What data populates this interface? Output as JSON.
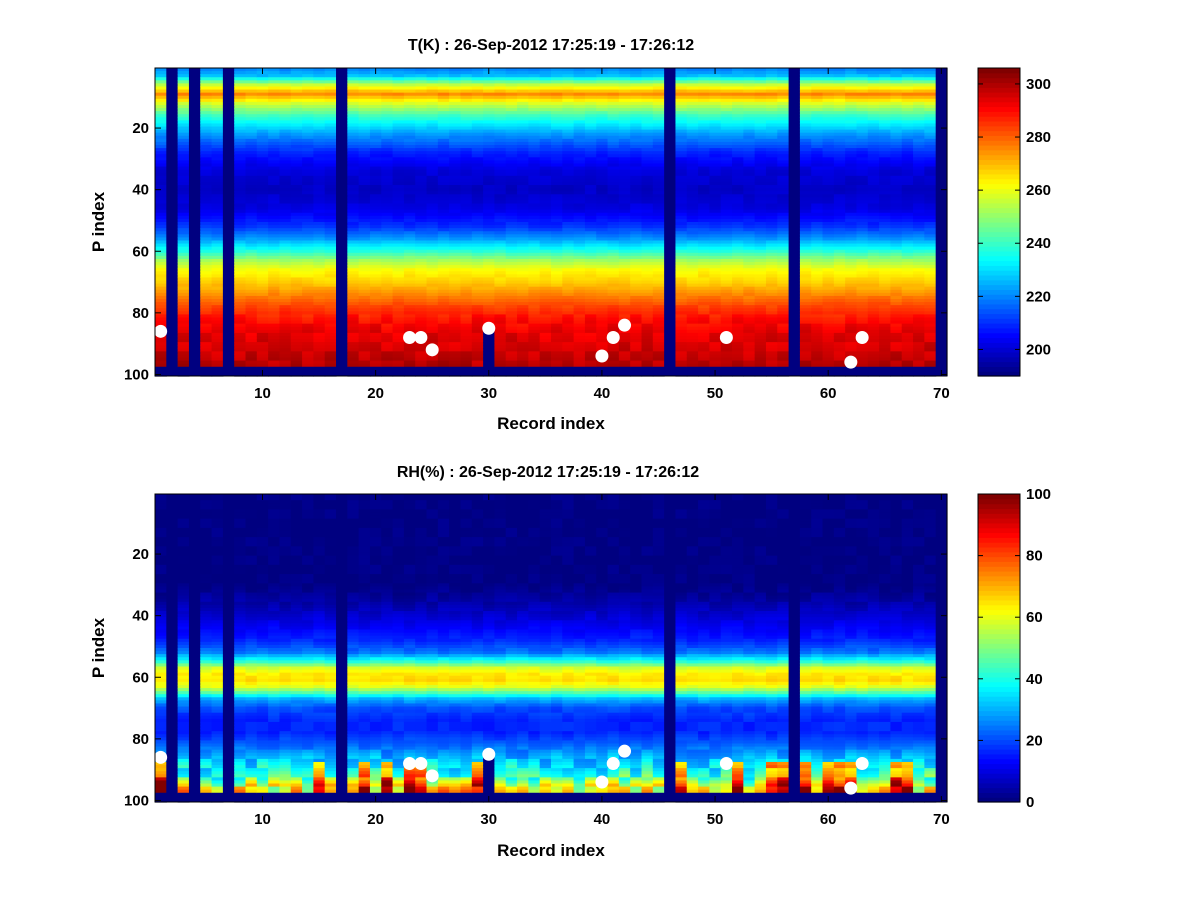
{
  "chart_data": [
    {
      "type": "heatmap",
      "title": "T(K) : 26-Sep-2012 17:25:19 - 17:26:12",
      "xlabel": "Record index",
      "ylabel": "P index",
      "xlim": [
        0.5,
        70.5
      ],
      "ylim": [
        0.5,
        100.5
      ],
      "y_reversed": true,
      "xticks": [
        10,
        20,
        30,
        40,
        50,
        60,
        70
      ],
      "yticks": [
        20,
        40,
        60,
        80,
        100
      ],
      "colormap": "jet",
      "clim": [
        190,
        306
      ],
      "colorbar_ticks": [
        200,
        220,
        240,
        260,
        280,
        300
      ],
      "missing_records": [
        2,
        4,
        7,
        17,
        46,
        57,
        70
      ],
      "missing_from_p": [
        {
          "record": 30,
          "p": 86
        }
      ],
      "bottom_missing_p": 98,
      "profile": [
        [
          1,
          220
        ],
        [
          3,
          226
        ],
        [
          6,
          256
        ],
        [
          9,
          276
        ],
        [
          12,
          258
        ],
        [
          16,
          240
        ],
        [
          22,
          222
        ],
        [
          28,
          208
        ],
        [
          34,
          200
        ],
        [
          40,
          198
        ],
        [
          46,
          201
        ],
        [
          52,
          210
        ],
        [
          56,
          222
        ],
        [
          60,
          238
        ],
        [
          63,
          252
        ],
        [
          66,
          262
        ],
        [
          70,
          268
        ],
        [
          74,
          276
        ],
        [
          78,
          284
        ],
        [
          82,
          290
        ],
        [
          86,
          294
        ],
        [
          90,
          296
        ],
        [
          94,
          298
        ],
        [
          97,
          300
        ]
      ],
      "markers": [
        {
          "x": 1,
          "y": 86
        },
        {
          "x": 23,
          "y": 88
        },
        {
          "x": 24,
          "y": 88
        },
        {
          "x": 25,
          "y": 92
        },
        {
          "x": 30,
          "y": 85
        },
        {
          "x": 40,
          "y": 94
        },
        {
          "x": 41,
          "y": 88
        },
        {
          "x": 42,
          "y": 84
        },
        {
          "x": 51,
          "y": 88
        },
        {
          "x": 62,
          "y": 96
        },
        {
          "x": 63,
          "y": 88
        }
      ],
      "marker_color": "#ffffff"
    },
    {
      "type": "heatmap",
      "title": "RH(%) : 26-Sep-2012 17:25:19 - 17:26:12",
      "xlabel": "Record index",
      "ylabel": "P index",
      "xlim": [
        0.5,
        70.5
      ],
      "ylim": [
        0.5,
        100.5
      ],
      "y_reversed": true,
      "xticks": [
        10,
        20,
        30,
        40,
        50,
        60,
        70
      ],
      "yticks": [
        20,
        40,
        60,
        80,
        100
      ],
      "colormap": "jet",
      "clim": [
        0,
        100
      ],
      "colorbar_ticks": [
        0,
        20,
        40,
        60,
        80,
        100
      ],
      "missing_records": [
        2,
        4,
        7,
        17,
        46,
        57,
        70
      ],
      "missing_from_p": [
        {
          "record": 30,
          "p": 86
        }
      ],
      "bottom_missing_p": 98,
      "profile": [
        [
          1,
          0
        ],
        [
          30,
          0
        ],
        [
          36,
          4
        ],
        [
          42,
          10
        ],
        [
          48,
          16
        ],
        [
          52,
          24
        ],
        [
          55,
          42
        ],
        [
          57,
          58
        ],
        [
          59,
          64
        ],
        [
          61,
          66
        ],
        [
          63,
          60
        ],
        [
          65,
          46
        ],
        [
          67,
          30
        ],
        [
          70,
          20
        ],
        [
          74,
          16
        ],
        [
          78,
          16
        ],
        [
          82,
          22
        ],
        [
          86,
          30
        ],
        [
          90,
          38
        ],
        [
          93,
          46
        ],
        [
          95,
          58
        ],
        [
          97,
          64
        ]
      ],
      "markers": [
        {
          "x": 1,
          "y": 86
        },
        {
          "x": 23,
          "y": 88
        },
        {
          "x": 24,
          "y": 88
        },
        {
          "x": 25,
          "y": 92
        },
        {
          "x": 30,
          "y": 85
        },
        {
          "x": 40,
          "y": 94
        },
        {
          "x": 41,
          "y": 88
        },
        {
          "x": 42,
          "y": 84
        },
        {
          "x": 51,
          "y": 88
        },
        {
          "x": 62,
          "y": 96
        },
        {
          "x": 63,
          "y": 88
        }
      ],
      "marker_color": "#ffffff"
    }
  ]
}
